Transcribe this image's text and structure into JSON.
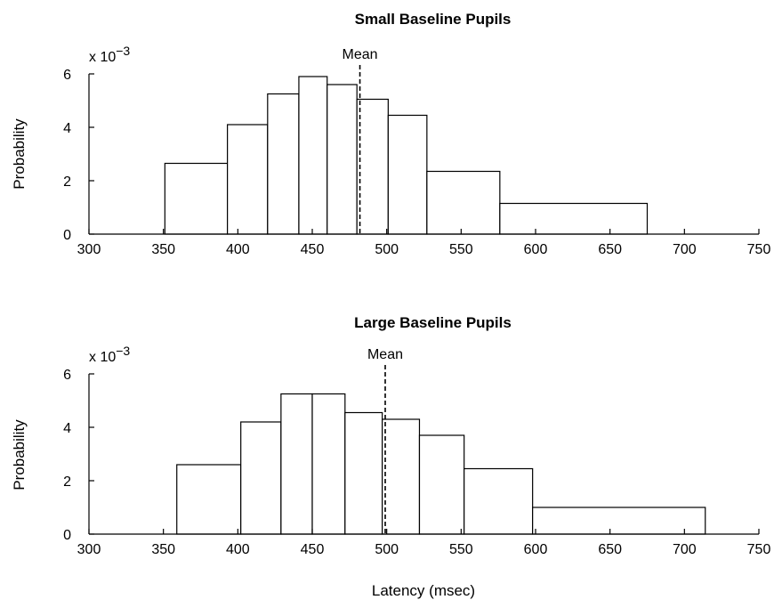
{
  "figure": {
    "xlabel": "Latency (msec)",
    "ylabel": "Probability"
  },
  "chart_data": [
    {
      "type": "bar",
      "title": "Small Baseline Pupils",
      "ylabel": "Probability",
      "xlabel": "",
      "y_multiplier": "x 10",
      "y_multiplier_exponent": "−3",
      "mean_label": "Mean",
      "mean": 482,
      "xlim": [
        300,
        750
      ],
      "ylim": [
        0,
        6
      ],
      "xticks": [
        300,
        350,
        400,
        450,
        500,
        550,
        600,
        650,
        700,
        750
      ],
      "yticks": [
        0,
        2,
        4,
        6
      ],
      "bins": [
        {
          "x0": 300,
          "x1": 351,
          "value": 0
        },
        {
          "x0": 351,
          "x1": 393,
          "value": 2.65
        },
        {
          "x0": 393,
          "x1": 420,
          "value": 4.1
        },
        {
          "x0": 420,
          "x1": 441,
          "value": 5.25
        },
        {
          "x0": 441,
          "x1": 460,
          "value": 5.9
        },
        {
          "x0": 460,
          "x1": 480,
          "value": 5.6
        },
        {
          "x0": 480,
          "x1": 501,
          "value": 5.05
        },
        {
          "x0": 501,
          "x1": 527,
          "value": 4.45
        },
        {
          "x0": 527,
          "x1": 576,
          "value": 2.35
        },
        {
          "x0": 576,
          "x1": 675,
          "value": 1.15
        },
        {
          "x0": 675,
          "x1": 750,
          "value": 0
        }
      ]
    },
    {
      "type": "bar",
      "title": "Large Baseline Pupils",
      "ylabel": "Probability",
      "xlabel": "Latency (msec)",
      "y_multiplier": "x 10",
      "y_multiplier_exponent": "−3",
      "mean_label": "Mean",
      "mean": 499,
      "xlim": [
        300,
        750
      ],
      "ylim": [
        0,
        6
      ],
      "xticks": [
        300,
        350,
        400,
        450,
        500,
        550,
        600,
        650,
        700,
        750
      ],
      "yticks": [
        0,
        2,
        4,
        6
      ],
      "bins": [
        {
          "x0": 300,
          "x1": 359,
          "value": 0
        },
        {
          "x0": 359,
          "x1": 402,
          "value": 2.6
        },
        {
          "x0": 402,
          "x1": 429,
          "value": 4.2
        },
        {
          "x0": 429,
          "x1": 450,
          "value": 5.25
        },
        {
          "x0": 450,
          "x1": 472,
          "value": 5.25
        },
        {
          "x0": 472,
          "x1": 497,
          "value": 4.55
        },
        {
          "x0": 497,
          "x1": 522,
          "value": 4.3
        },
        {
          "x0": 522,
          "x1": 552,
          "value": 3.7
        },
        {
          "x0": 552,
          "x1": 598,
          "value": 2.45
        },
        {
          "x0": 598,
          "x1": 714,
          "value": 1.0
        },
        {
          "x0": 714,
          "x1": 750,
          "value": 0
        }
      ]
    }
  ]
}
